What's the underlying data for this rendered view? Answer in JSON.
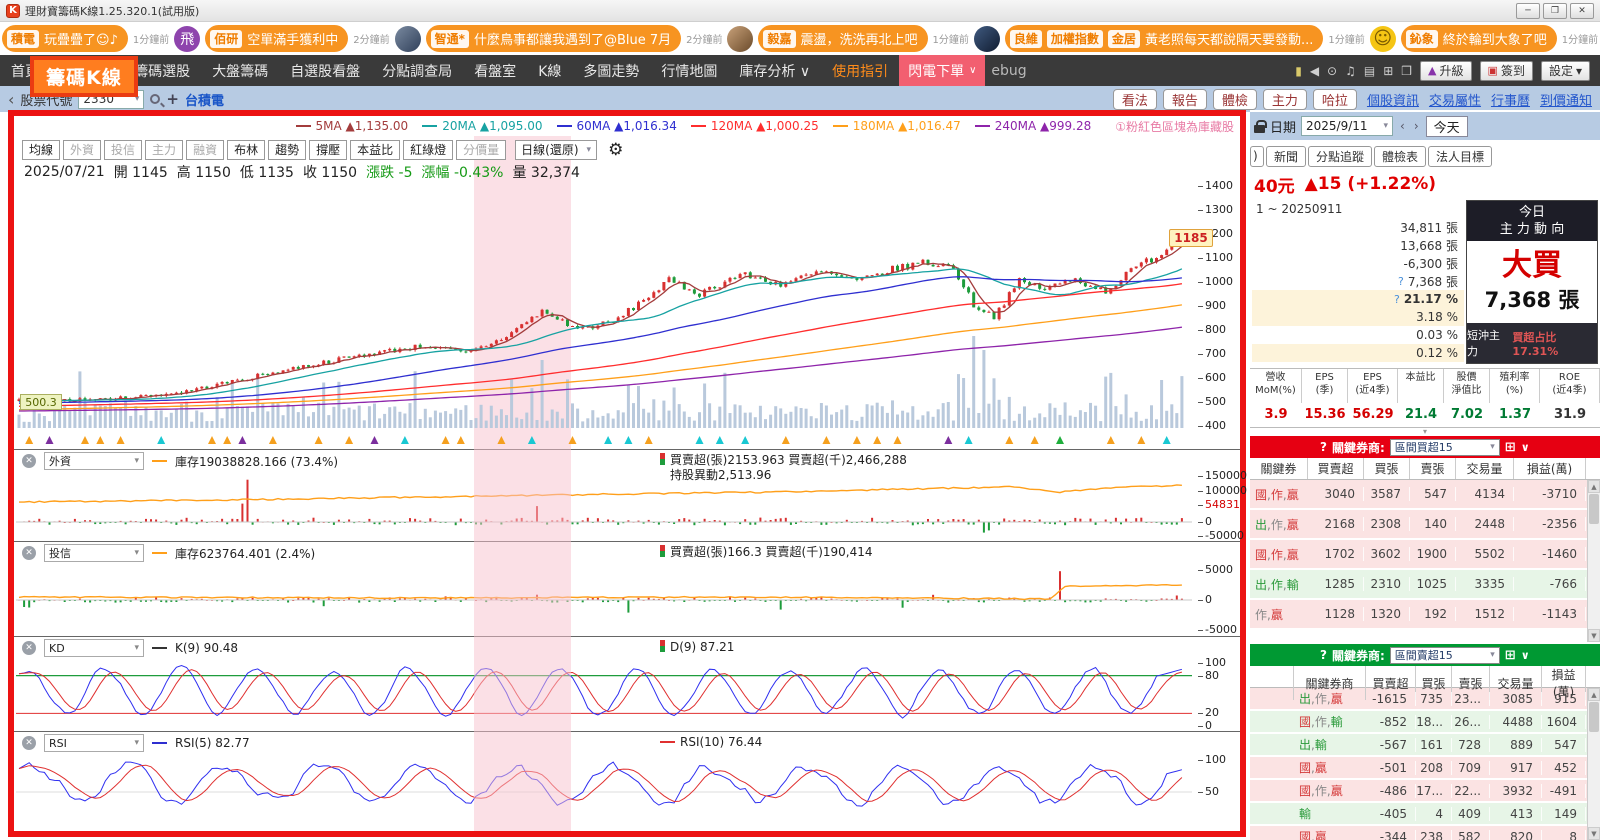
{
  "window": {
    "title": "理財寶籌碼K線1.25.320.1(試用版)",
    "app_letter": "K",
    "min": "─",
    "restore": "❐",
    "close": "✕"
  },
  "notifbar": {
    "items": [
      {
        "type": "pill",
        "tags": [
          "積電"
        ],
        "msg": "玩疊疊了☺♪",
        "time": "1分鐘前"
      },
      {
        "type": "avatar",
        "style": "av-purple",
        "text": "飛"
      },
      {
        "type": "pill",
        "tags": [
          "佰研"
        ],
        "msg": "空單滿手獲利中",
        "time": "2分鐘前"
      },
      {
        "type": "avatar",
        "style": "av-photo1",
        "text": ""
      },
      {
        "type": "pill",
        "tags": [
          "智通*"
        ],
        "msg": "什麼鳥事都讓我遇到了@Blue 7月",
        "time": "2分鐘前"
      },
      {
        "type": "avatar",
        "style": "av-photo2",
        "text": ""
      },
      {
        "type": "pill",
        "tags": [
          "毅嘉"
        ],
        "msg": "震盪，洗洗再北上吧",
        "time": "1分鐘前"
      },
      {
        "type": "avatar",
        "style": "av-photo3",
        "text": ""
      },
      {
        "type": "pill",
        "tags": [
          "良維",
          "加權指數",
          "金居"
        ],
        "msg": "黃老照每天都說隔天要發動...",
        "time": "1分鐘前"
      },
      {
        "type": "avatar",
        "style": "av-smiley",
        "text": "☺"
      },
      {
        "type": "pill",
        "tags": [
          "鈊象"
        ],
        "msg": "終於輪到大象了吧",
        "time": "1分鐘前"
      },
      {
        "type": "avatar",
        "style": "av-photo4",
        "text": ""
      },
      {
        "type": "pill",
        "tags": [],
        "msg": "…",
        "time": ""
      }
    ],
    "chat_dots": "⋯",
    "gear": "⚙"
  },
  "menu": {
    "items": [
      {
        "label": "首頁",
        "accent": false
      },
      {
        "label": "籌碼K線",
        "accent": false
      },
      {
        "label": "籌碼選股",
        "accent": false
      },
      {
        "label": "大盤籌碼",
        "accent": false
      },
      {
        "label": "自選股看盤",
        "accent": false
      },
      {
        "label": "分點調查局",
        "accent": false
      },
      {
        "label": "看盤室",
        "accent": false
      },
      {
        "label": "K線",
        "accent": false
      },
      {
        "label": "多圖走勢",
        "accent": false
      },
      {
        "label": "行情地圖",
        "accent": false
      },
      {
        "label": "庫存分析 ∨",
        "accent": false
      },
      {
        "label": "使用指引",
        "accent": true
      }
    ],
    "flash_order": "閃電下單",
    "flash_caret": "∨",
    "debug": "ebug",
    "icon_glyphs": [
      "▮",
      "◀",
      "⊙",
      "♫",
      "▤",
      "⊞",
      "❒"
    ],
    "buttons": [
      {
        "icon": "▲",
        "icon_color": "#8833aa",
        "label": "升級"
      },
      {
        "icon": "▣",
        "icon_color": "#cc3333",
        "label": "簽到"
      },
      {
        "icon": "",
        "icon_color": "",
        "label": "設定"
      }
    ],
    "settings_caret": "▾"
  },
  "annotation": {
    "highlight_label": "籌碼K線"
  },
  "subheader": {
    "back": "‹",
    "stock_label": "股票代號",
    "stock_code": "2330",
    "code_caret": "▾",
    "plus": "+",
    "stock_name": "台積電",
    "buttons": [
      "看法",
      "報告",
      "體檢",
      "主力",
      "哈拉"
    ],
    "links": [
      "個股資訊",
      "交易屬性",
      "行事曆",
      "到價通知"
    ]
  },
  "chart": {
    "ma_legend": [
      {
        "label": "5MA",
        "value": "▲1,135.00",
        "color": "#a33c3c"
      },
      {
        "label": "20MA",
        "value": "▲1,095.00",
        "color": "#17a2a2"
      },
      {
        "label": "60MA",
        "value": "▲1,016.34",
        "color": "#2f2fd0"
      },
      {
        "label": "120MA",
        "value": "▲1,000.25",
        "color": "#ff2d2d"
      },
      {
        "label": "180MA",
        "value": "▲1,016.47",
        "color": "#ff9f1a"
      },
      {
        "label": "240MA",
        "value": "▲999.28",
        "color": "#8e24aa"
      }
    ],
    "note": "①粉紅色區塊為庫藏股",
    "toolbar": {
      "buttons": [
        {
          "label": "均線",
          "on": true
        },
        {
          "label": "外資",
          "on": false
        },
        {
          "label": "投信",
          "on": false
        },
        {
          "label": "主力",
          "on": false
        },
        {
          "label": "融資",
          "on": false
        },
        {
          "label": "布林",
          "on": true
        },
        {
          "label": "趨勢",
          "on": true
        },
        {
          "label": "撐壓",
          "on": true
        },
        {
          "label": "本益比",
          "on": true
        },
        {
          "label": "紅綠燈",
          "on": true
        },
        {
          "label": "分價量",
          "on": false
        }
      ],
      "period": "日線(還原)",
      "period_caret": "▾",
      "gear": "⚙"
    },
    "ohlc": {
      "date": "2025/07/21",
      "o_label": "開",
      "o": "1145",
      "h_label": "高",
      "h": "1150",
      "l_label": "低",
      "l": "1135",
      "c_label": "收",
      "c": "1150",
      "chg_label": "漲跌",
      "chg": "-5",
      "pct_label": "漲幅",
      "pct": "-0.43%",
      "vol_label": "量",
      "vol": "32,374"
    },
    "main_axis": [
      "1400",
      "1300",
      "1200",
      "1100",
      "1000",
      "900",
      "800",
      "700",
      "600",
      "500",
      "400"
    ],
    "price_tag": "1185",
    "left_tag": "500.3",
    "panels": [
      {
        "name": "外資",
        "line_legend": "庫存19038828.166 (73.4%)",
        "bar_legend": "買賣超(張)2153.963 買賣超(千)2,466,288",
        "extra_legend": "持股異動2,513.96",
        "axis": [
          "150000",
          "100000",
          "0",
          "-50000"
        ],
        "current": "54831"
      },
      {
        "name": "投信",
        "line_legend": "庫存623764.401 (2.4%)",
        "bar_legend": "買賣超(張)166.3 買賣超(千)190,414",
        "extra_legend": "",
        "axis": [
          "5000",
          "0",
          "-5000"
        ],
        "current": ""
      },
      {
        "name": "KD",
        "line_legend": "K(9) 90.48",
        "bar_legend": "D(9) 87.21",
        "extra_legend": "",
        "axis": [
          "100",
          "80",
          "20",
          "0"
        ],
        "current": ""
      },
      {
        "name": "RSI",
        "line_legend": "RSI(5) 82.77",
        "bar_legend": "RSI(10) 76.44",
        "extra_legend": "",
        "axis": [
          "100",
          "50"
        ],
        "current": ""
      }
    ]
  },
  "panel": {
    "date_label": "日期",
    "date_value": "2025/9/11",
    "date_caret": "▾",
    "prev": "‹",
    "next": "›",
    "today": "今天",
    "tab_stub": ")",
    "tabs": [
      "新聞",
      "分點追蹤",
      "體檢表",
      "法人目標"
    ],
    "price": "40元",
    "change": "▲15 (+1.22%)",
    "range": "1 ~ 20250911",
    "stats": [
      {
        "value": "34,811 張",
        "q": false,
        "hl": false,
        "bold": false
      },
      {
        "value": "13,668 張",
        "q": false,
        "hl": false,
        "bold": false
      },
      {
        "value": "-6,300 張",
        "q": false,
        "hl": false,
        "bold": false
      },
      {
        "value": "7,368 張",
        "q": true,
        "hl": false,
        "bold": false
      },
      {
        "value": "21.17 %",
        "q": true,
        "hl": true,
        "bold": true
      },
      {
        "value": "3.18 %",
        "q": false,
        "hl": true,
        "bold": false
      },
      {
        "value": "0.03 %",
        "q": false,
        "hl": false,
        "bold": false
      },
      {
        "value": "0.12 %",
        "q": false,
        "hl": true,
        "bold": false
      }
    ],
    "today_box": {
      "title1": "今日",
      "title2": "主 力 動 向",
      "action": "大買",
      "amount": "7,368 張",
      "foot_label": "短沖主力",
      "foot_value": "買超占比17.31%"
    },
    "metrics": {
      "headers": [
        [
          "營收",
          "MoM(%)"
        ],
        [
          "EPS",
          "(季)"
        ],
        [
          "EPS",
          "(近4季)"
        ],
        [
          "本益比",
          ""
        ],
        [
          "股價",
          "淨值比"
        ],
        [
          "殖利率",
          "(%)"
        ],
        [
          "ROE",
          "(近4季)"
        ]
      ],
      "values": [
        {
          "v": "3.9",
          "c": "red"
        },
        {
          "v": "15.36",
          "c": "red"
        },
        {
          "v": "56.29",
          "c": "red"
        },
        {
          "v": "21.4",
          "c": "green"
        },
        {
          "v": "7.02",
          "c": "green"
        },
        {
          "v": "1.37",
          "c": "green"
        },
        {
          "v": "31.9",
          "c": "dark"
        }
      ]
    },
    "buy_bar": {
      "q": "?",
      "label": "關鍵券商:",
      "dropdown": "區間買超15"
    },
    "buy_table": {
      "headers": [
        "關鍵券",
        "買賣超",
        "買張",
        "賣張",
        "交易量",
        "損益(萬)"
      ],
      "rows": [
        {
          "tag": [
            [
              "國",
              "r"
            ],
            [
              "作",
              "r"
            ],
            [
              "贏",
              "r"
            ]
          ],
          "cells": [
            "3040",
            "3587",
            "547",
            "4134",
            "-3710"
          ],
          "bg": "pink"
        },
        {
          "tag": [
            [
              "出",
              "g"
            ],
            [
              "作",
              "x"
            ],
            [
              "贏",
              "r"
            ]
          ],
          "cells": [
            "2168",
            "2308",
            "140",
            "2448",
            "-2356"
          ],
          "bg": "pink"
        },
        {
          "tag": [
            [
              "國",
              "r"
            ],
            [
              "作",
              "r"
            ],
            [
              "贏",
              "r"
            ]
          ],
          "cells": [
            "1702",
            "3602",
            "1900",
            "5502",
            "-1460"
          ],
          "bg": "pink"
        },
        {
          "tag": [
            [
              "出",
              "g"
            ],
            [
              "作",
              "g"
            ],
            [
              "輸",
              "g"
            ]
          ],
          "cells": [
            "1285",
            "2310",
            "1025",
            "3335",
            "-766"
          ],
          "bg": "green"
        },
        {
          "tag": [
            [
              "作",
              "x"
            ],
            [
              "贏",
              "r"
            ]
          ],
          "cells": [
            "1128",
            "1320",
            "192",
            "1512",
            "-1143"
          ],
          "bg": "pink"
        }
      ]
    },
    "sell_bar": {
      "q": "?",
      "label": "關鍵券商:",
      "dropdown": "區間賣超15"
    },
    "sell_table": {
      "headers": [
        "",
        "關鍵券商",
        "買賣超",
        "買張",
        "賣張",
        "交易量",
        "損益(萬)"
      ],
      "rows": [
        {
          "tag": [
            [
              "出",
              "g"
            ],
            [
              "作",
              "x"
            ],
            [
              "贏",
              "r"
            ]
          ],
          "cells": [
            "-1615",
            "735",
            "23...",
            "3085",
            "915"
          ],
          "bg": "pink"
        },
        {
          "tag": [
            [
              "國",
              "r"
            ],
            [
              "作",
              "x"
            ],
            [
              "輸",
              "g"
            ]
          ],
          "cells": [
            "-852",
            "18...",
            "26...",
            "4488",
            "1604"
          ],
          "bg": "green"
        },
        {
          "tag": [
            [
              "出",
              "g"
            ],
            [
              "輸",
              "g"
            ]
          ],
          "cells": [
            "-567",
            "161",
            "728",
            "889",
            "547"
          ],
          "bg": "green"
        },
        {
          "tag": [
            [
              "國",
              "r"
            ],
            [
              "贏",
              "r"
            ]
          ],
          "cells": [
            "-501",
            "208",
            "709",
            "917",
            "452"
          ],
          "bg": "pink"
        },
        {
          "tag": [
            [
              "國",
              "r"
            ],
            [
              "作",
              "x"
            ],
            [
              "贏",
              "r"
            ]
          ],
          "cells": [
            "-486",
            "17...",
            "22...",
            "3932",
            "-491"
          ],
          "bg": "pink"
        },
        {
          "tag": [
            [
              "輸",
              "g"
            ]
          ],
          "cells": [
            "-405",
            "4",
            "409",
            "413",
            "149"
          ],
          "bg": "green"
        },
        {
          "tag": [
            [
              "國",
              "r"
            ],
            [
              "贏",
              "r"
            ]
          ],
          "cells": [
            "-344",
            "238",
            "582",
            "820",
            "8"
          ],
          "bg": "pink"
        }
      ]
    }
  }
}
